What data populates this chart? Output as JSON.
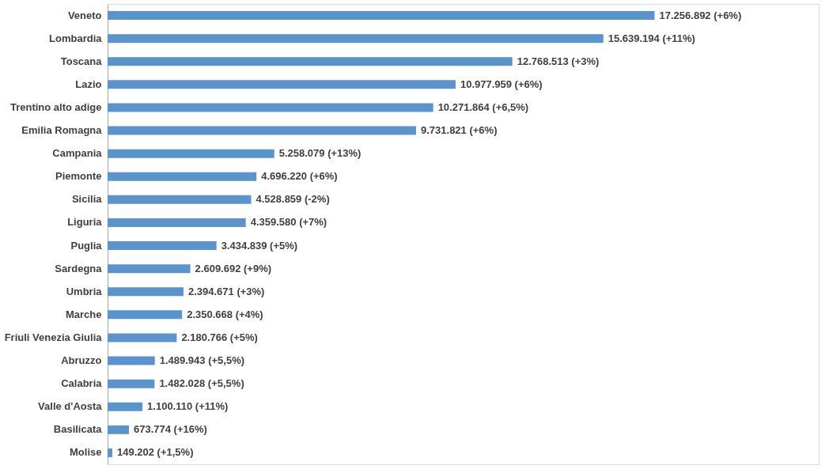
{
  "chart_data": {
    "type": "bar",
    "orientation": "horizontal",
    "color": "#5b93cc",
    "categories": [
      "Veneto",
      "Lombardia",
      "Toscana",
      "Lazio",
      "Trentino alto adige",
      "Emilia Romagna",
      "Campania",
      "Piemonte",
      "Sicilia",
      "Liguria",
      "Puglia",
      "Sardegna",
      "Umbria",
      "Marche",
      "Friuli Venezia Giulia",
      "Abruzzo",
      "Calabria",
      "Valle d'Aosta",
      "Basilicata",
      "Molise"
    ],
    "values": [
      17256892,
      15639194,
      12768513,
      10977959,
      10271864,
      9731821,
      5258079,
      4696220,
      4528859,
      4359580,
      3434839,
      2609692,
      2394671,
      2350668,
      2180766,
      1489943,
      1482028,
      1100110,
      673774,
      149202
    ],
    "value_labels": [
      "17.256.892 (+6%)",
      "15.639.194 (+11%)",
      "12.768.513 (+3%)",
      "10.977.959 (+6%)",
      "10.271.864  (+6,5%)",
      "9.731.821 (+6%)",
      "5.258.079 (+13%)",
      "4.696.220 (+6%)",
      "4.528.859 (-2%)",
      "4.359.580 (+7%)",
      "3.434.839 (+5%)",
      "2.609.692 (+9%)",
      "2.394.671 (+3%)",
      "2.350.668 (+4%)",
      "2.180.766 (+5%)",
      "1.489.943 (+5,5%)",
      "1.482.028 (+5,5%)",
      "1.100.110 (+11%)",
      "673.774 (+16%)",
      "149.202 (+1,5%)"
    ],
    "data_labels": false
  }
}
